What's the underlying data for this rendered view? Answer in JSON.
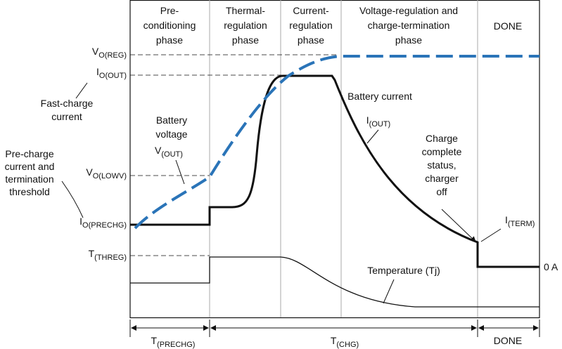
{
  "phases": [
    [
      "Pre-",
      "conditioning",
      "phase"
    ],
    [
      "Thermal-",
      "regulation",
      "phase"
    ],
    [
      "Current-",
      "regulation",
      "phase"
    ],
    [
      "Voltage-regulation and",
      "charge-termination",
      "phase"
    ],
    [
      "DONE"
    ]
  ],
  "levels": [
    {
      "main": "V",
      "sub": "O(REG)"
    },
    {
      "main": "I",
      "sub": "O(OUT)"
    },
    {
      "main": "V",
      "sub": "O(LOWV)"
    },
    {
      "main": "I",
      "sub": "O(PRECHG)"
    },
    {
      "main": "T",
      "sub": "(THREG)"
    }
  ],
  "annotations": {
    "fast_charge": [
      "Fast-charge",
      "current"
    ],
    "precharge": [
      "Pre-charge",
      "current and",
      "termination",
      "threshold"
    ],
    "battery_voltage": [
      "Battery",
      "voltage"
    ],
    "v_out": {
      "main": "V",
      "sub": "(OUT)"
    },
    "battery_current": "Battery current",
    "i_out": {
      "main": "I",
      "sub": "(OUT)"
    },
    "charge_complete": [
      "Charge",
      "complete",
      "status,",
      "charger",
      "off"
    ],
    "i_term": {
      "main": "I",
      "sub": "(TERM)"
    },
    "zero": "0 A",
    "temperature": "Temperature (Tj)"
  },
  "timeline": [
    {
      "main": "T",
      "sub": "(PRECHG)"
    },
    {
      "main": "T",
      "sub": "(CHG)"
    },
    {
      "main": "DONE"
    }
  ]
}
